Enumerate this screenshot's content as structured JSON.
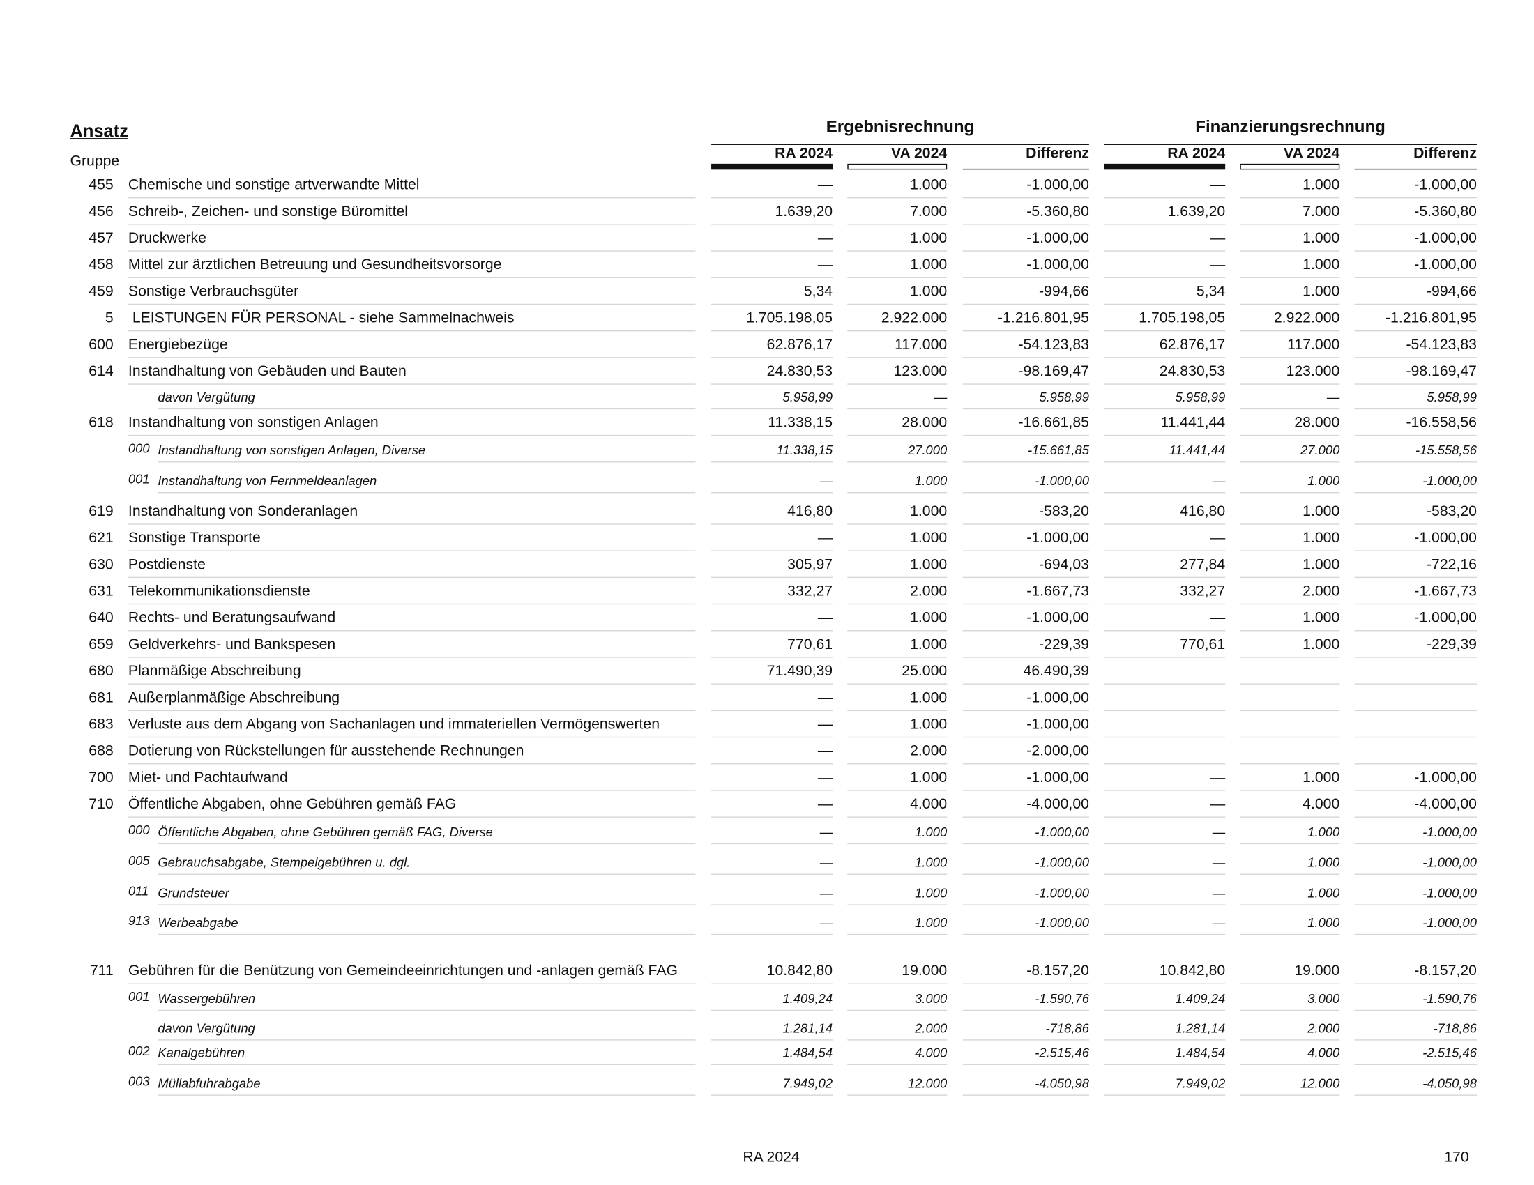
{
  "header": {
    "ansatz": "Ansatz",
    "gruppe": "Gruppe",
    "ergebnis": "Ergebnisrechnung",
    "finanz": "Finanzierungsrechnung",
    "columns": [
      "RA 2024",
      "VA 2024",
      "Differenz",
      "RA 2024",
      "VA 2024",
      "Differenz"
    ]
  },
  "rows": [
    {
      "code": "455",
      "label": "Chemische und sonstige artverwandte Mittel",
      "values": [
        "—",
        "1.000",
        "-1.000,00",
        "—",
        "1.000",
        "-1.000,00"
      ]
    },
    {
      "code": "456",
      "label": "Schreib-, Zeichen- und sonstige Büromittel",
      "values": [
        "1.639,20",
        "7.000",
        "-5.360,80",
        "1.639,20",
        "7.000",
        "-5.360,80"
      ]
    },
    {
      "code": "457",
      "label": "Druckwerke",
      "values": [
        "—",
        "1.000",
        "-1.000,00",
        "—",
        "1.000",
        "-1.000,00"
      ]
    },
    {
      "code": "458",
      "label": "Mittel zur ärztlichen Betreuung und Gesundheitsvorsorge",
      "values": [
        "—",
        "1.000",
        "-1.000,00",
        "—",
        "1.000",
        "-1.000,00"
      ]
    },
    {
      "code": "459",
      "label": "Sonstige Verbrauchsgüter",
      "values": [
        "5,34",
        "1.000",
        "-994,66",
        "5,34",
        "1.000",
        "-994,66"
      ]
    },
    {
      "code": "5",
      "label": " LEISTUNGEN FÜR PERSONAL - siehe Sammelnachweis",
      "values": [
        "1.705.198,05",
        "2.922.000",
        "-1.216.801,95",
        "1.705.198,05",
        "2.922.000",
        "-1.216.801,95"
      ]
    },
    {
      "code": "600",
      "label": "Energiebezüge",
      "values": [
        "62.876,17",
        "117.000",
        "-54.123,83",
        "62.876,17",
        "117.000",
        "-54.123,83"
      ]
    },
    {
      "code": "614",
      "label": "Instandhaltung von Gebäuden und Bauten",
      "values": [
        "24.830,53",
        "123.000",
        "-98.169,47",
        "24.830,53",
        "123.000",
        "-98.169,47"
      ]
    },
    {
      "label": "davon Vergütung",
      "values": [
        "5.958,99",
        "—",
        "5.958,99",
        "5.958,99",
        "—",
        "5.958,99"
      ]
    },
    {
      "code": "618",
      "label": "Instandhaltung von sonstigen Anlagen",
      "values": [
        "11.338,15",
        "28.000",
        "-16.661,85",
        "11.441,44",
        "28.000",
        "-16.558,56"
      ]
    },
    {
      "subcode": "000",
      "label": "Instandhaltung von sonstigen Anlagen, Diverse",
      "values": [
        "11.338,15",
        "27.000",
        "-15.661,85",
        "11.441,44",
        "27.000",
        "-15.558,56"
      ]
    },
    {
      "subcode": "001",
      "label": "Instandhaltung von Fernmeldeanlagen",
      "values": [
        "—",
        "1.000",
        "-1.000,00",
        "—",
        "1.000",
        "-1.000,00"
      ]
    },
    {
      "code": "619",
      "label": "Instandhaltung von Sonderanlagen",
      "values": [
        "416,80",
        "1.000",
        "-583,20",
        "416,80",
        "1.000",
        "-583,20"
      ]
    },
    {
      "code": "621",
      "label": "Sonstige Transporte",
      "values": [
        "—",
        "1.000",
        "-1.000,00",
        "—",
        "1.000",
        "-1.000,00"
      ]
    },
    {
      "code": "630",
      "label": "Postdienste",
      "values": [
        "305,97",
        "1.000",
        "-694,03",
        "277,84",
        "1.000",
        "-722,16"
      ]
    },
    {
      "code": "631",
      "label": "Telekommunikationsdienste",
      "values": [
        "332,27",
        "2.000",
        "-1.667,73",
        "332,27",
        "2.000",
        "-1.667,73"
      ]
    },
    {
      "code": "640",
      "label": "Rechts- und Beratungsaufwand",
      "values": [
        "—",
        "1.000",
        "-1.000,00",
        "—",
        "1.000",
        "-1.000,00"
      ]
    },
    {
      "code": "659",
      "label": "Geldverkehrs- und Bankspesen",
      "values": [
        "770,61",
        "1.000",
        "-229,39",
        "770,61",
        "1.000",
        "-229,39"
      ]
    },
    {
      "code": "680",
      "label": "Planmäßige Abschreibung",
      "values": [
        "71.490,39",
        "25.000",
        "46.490,39"
      ]
    },
    {
      "code": "681",
      "label": "Außerplanmäßige Abschreibung",
      "values": [
        "—",
        "1.000",
        "-1.000,00"
      ]
    },
    {
      "code": "683",
      "label": "Verluste aus dem Abgang von Sachanlagen und immateriellen Vermögenswerten",
      "values": [
        "—",
        "1.000",
        "-1.000,00"
      ]
    },
    {
      "code": "688",
      "label": "Dotierung von Rückstellungen für ausstehende Rechnungen",
      "values": [
        "—",
        "2.000",
        "-2.000,00"
      ]
    },
    {
      "code": "700",
      "label": "Miet- und Pachtaufwand",
      "values": [
        "—",
        "1.000",
        "-1.000,00",
        "—",
        "1.000",
        "-1.000,00"
      ]
    },
    {
      "code": "710",
      "label": "Öffentliche Abgaben, ohne Gebühren gemäß FAG",
      "values": [
        "—",
        "4.000",
        "-4.000,00",
        "—",
        "4.000",
        "-4.000,00"
      ]
    },
    {
      "subcode": "000",
      "label": "Öffentliche Abgaben, ohne Gebühren gemäß FAG, Diverse",
      "values": [
        "—",
        "1.000",
        "-1.000,00",
        "—",
        "1.000",
        "-1.000,00"
      ]
    },
    {
      "subcode": "005",
      "label": "Gebrauchsabgabe, Stempelgebühren u. dgl.",
      "values": [
        "—",
        "1.000",
        "-1.000,00",
        "—",
        "1.000",
        "-1.000,00"
      ]
    },
    {
      "subcode": "011",
      "label": "Grundsteuer",
      "values": [
        "—",
        "1.000",
        "-1.000,00",
        "—",
        "1.000",
        "-1.000,00"
      ]
    },
    {
      "subcode": "913",
      "label": "Werbeabgabe",
      "values": [
        "—",
        "1.000",
        "-1.000,00",
        "—",
        "1.000",
        "-1.000,00"
      ]
    },
    {
      "code": "711",
      "label": "Gebühren für die Benützung von Gemeindeeinrichtungen und -anlagen gemäß FAG",
      "values": [
        "10.842,80",
        "19.000",
        "-8.157,20",
        "10.842,80",
        "19.000",
        "-8.157,20"
      ]
    },
    {
      "subcode": "001",
      "label": "Wassergebühren",
      "values": [
        "1.409,24",
        "3.000",
        "-1.590,76",
        "1.409,24",
        "3.000",
        "-1.590,76"
      ]
    },
    {
      "label": "davon Vergütung",
      "values": [
        "1.281,14",
        "2.000",
        "-718,86",
        "1.281,14",
        "2.000",
        "-718,86"
      ]
    },
    {
      "subcode": "002",
      "label": "Kanalgebühren",
      "values": [
        "1.484,54",
        "4.000",
        "-2.515,46",
        "1.484,54",
        "4.000",
        "-2.515,46"
      ]
    },
    {
      "subcode": "003",
      "label": "Müllabfuhrabgabe",
      "values": [
        "7.949,02",
        "12.000",
        "-4.050,98",
        "7.949,02",
        "12.000",
        "-4.050,98"
      ]
    }
  ],
  "footer": {
    "center": "RA 2024",
    "page": "170"
  }
}
